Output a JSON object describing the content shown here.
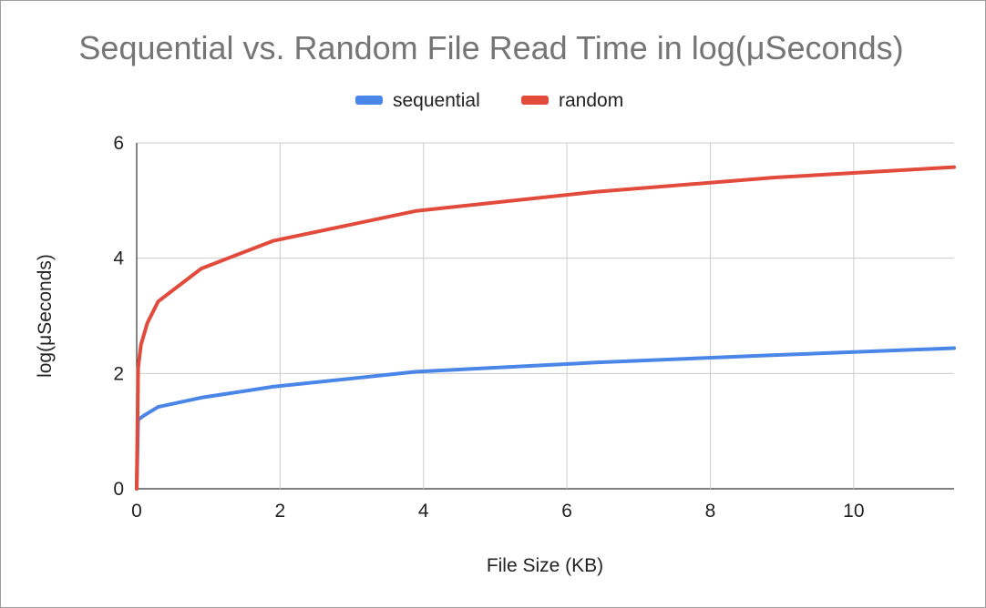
{
  "chart_data": {
    "type": "line",
    "title": "Sequential vs. Random File Read Time in log(μSeconds)",
    "xlabel": "File Size (KB)",
    "ylabel": "log(μSeconds)",
    "xlim": [
      0,
      11.4
    ],
    "ylim": [
      0,
      6
    ],
    "xticks": [
      0,
      2,
      4,
      6,
      8,
      10
    ],
    "yticks": [
      0,
      2,
      4,
      6
    ],
    "grid": true,
    "legend_position": "top",
    "series": [
      {
        "name": "sequential",
        "color": "#4a86e8",
        "points": [
          [
            0,
            0
          ],
          [
            0.02,
            1.2
          ],
          [
            0.1,
            1.27
          ],
          [
            0.3,
            1.42
          ],
          [
            0.9,
            1.58
          ],
          [
            1.9,
            1.77
          ],
          [
            3.9,
            2.03
          ],
          [
            6.4,
            2.19
          ],
          [
            8.9,
            2.32
          ],
          [
            11.4,
            2.44
          ]
        ]
      },
      {
        "name": "random",
        "color": "#e24a3b",
        "points": [
          [
            0,
            0
          ],
          [
            0.02,
            2.1
          ],
          [
            0.06,
            2.5
          ],
          [
            0.15,
            2.88
          ],
          [
            0.3,
            3.25
          ],
          [
            0.9,
            3.82
          ],
          [
            1.9,
            4.3
          ],
          [
            3.9,
            4.82
          ],
          [
            6.4,
            5.15
          ],
          [
            8.9,
            5.4
          ],
          [
            11.4,
            5.58
          ]
        ]
      }
    ]
  }
}
